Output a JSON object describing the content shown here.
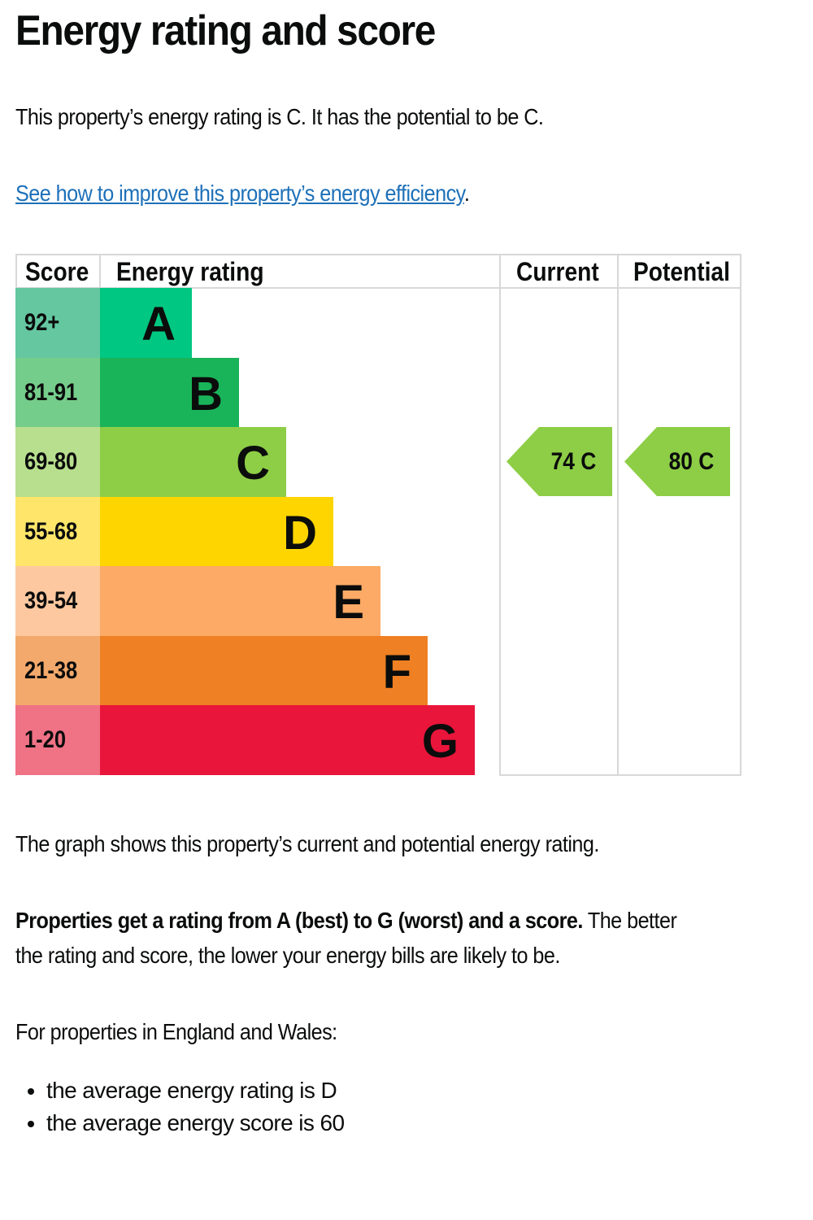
{
  "title": "Energy rating and score",
  "intro": "This property’s energy rating is C. It has the potential to be C.",
  "improve_link": "See how to improve this property’s energy efficiency",
  "improve_link_suffix": ".",
  "chart_data": {
    "type": "bar",
    "headers": {
      "score": "Score",
      "rating": "Energy rating",
      "current": "Current",
      "potential": "Potential"
    },
    "bands": [
      {
        "letter": "A",
        "range": "92+",
        "color": "#00c781",
        "score_color": "#64c7a0"
      },
      {
        "letter": "B",
        "range": "81-91",
        "color": "#19b459",
        "score_color": "#75cd8b"
      },
      {
        "letter": "C",
        "range": "69-80",
        "color": "#8dce46",
        "score_color": "#b8df8e"
      },
      {
        "letter": "D",
        "range": "55-68",
        "color": "#ffd500",
        "score_color": "#ffe56a"
      },
      {
        "letter": "E",
        "range": "39-54",
        "color": "#fcaa65",
        "score_color": "#fdc89f"
      },
      {
        "letter": "F",
        "range": "21-38",
        "color": "#ef8023",
        "score_color": "#f3a96b"
      },
      {
        "letter": "G",
        "range": "1-20",
        "color": "#e9153b",
        "score_color": "#f07285"
      }
    ],
    "current": {
      "score": 74,
      "rating": "C",
      "label": "74 C"
    },
    "potential": {
      "score": 80,
      "rating": "C",
      "label": "80 C"
    }
  },
  "graph_caption": "The graph shows this property’s current and potential energy rating.",
  "explain_bold": "Properties get a rating from A (best) to G (worst) and a score.",
  "explain_rest_1": " The better",
  "explain_rest_2": "the rating and score, the lower your energy bills are likely to be.",
  "region_intro": "For properties in England and Wales:",
  "averages": [
    "the average energy rating is D",
    "the average energy score is 60"
  ]
}
